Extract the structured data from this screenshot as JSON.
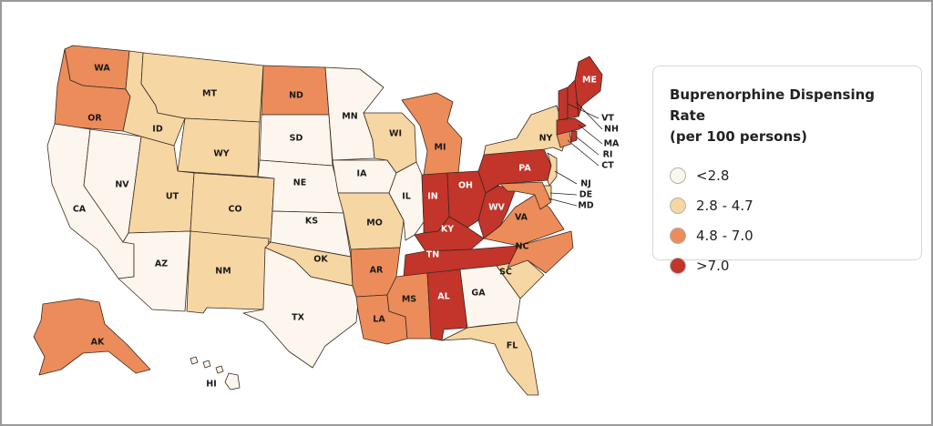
{
  "colors": {
    "bin_0": "#fdf6ee",
    "bin_1": "#f6d6a3",
    "bin_2": "#ec8c5a",
    "bin_3": "#c3342a"
  },
  "legend": {
    "title_line1": "Buprenorphine Dispensing Rate",
    "title_line2": "(per 100 persons)",
    "items": [
      {
        "label": "<2.8",
        "bin": 0
      },
      {
        "label": "2.8 - 4.7",
        "bin": 1
      },
      {
        "label": "4.8 - 7.0",
        "bin": 2
      },
      {
        "label": ">7.0",
        "bin": 3
      }
    ]
  },
  "states": [
    {
      "abbr": "WA",
      "bin": 2
    },
    {
      "abbr": "OR",
      "bin": 2
    },
    {
      "abbr": "CA",
      "bin": 0
    },
    {
      "abbr": "NV",
      "bin": 0
    },
    {
      "abbr": "ID",
      "bin": 1
    },
    {
      "abbr": "MT",
      "bin": 1
    },
    {
      "abbr": "WY",
      "bin": 1
    },
    {
      "abbr": "UT",
      "bin": 1
    },
    {
      "abbr": "CO",
      "bin": 1
    },
    {
      "abbr": "AZ",
      "bin": 0
    },
    {
      "abbr": "NM",
      "bin": 1
    },
    {
      "abbr": "ND",
      "bin": 2
    },
    {
      "abbr": "SD",
      "bin": 0
    },
    {
      "abbr": "NE",
      "bin": 0
    },
    {
      "abbr": "KS",
      "bin": 0
    },
    {
      "abbr": "OK",
      "bin": 1
    },
    {
      "abbr": "TX",
      "bin": 0
    },
    {
      "abbr": "MN",
      "bin": 0
    },
    {
      "abbr": "IA",
      "bin": 0
    },
    {
      "abbr": "MO",
      "bin": 1
    },
    {
      "abbr": "AR",
      "bin": 2
    },
    {
      "abbr": "LA",
      "bin": 2
    },
    {
      "abbr": "WI",
      "bin": 1
    },
    {
      "abbr": "IL",
      "bin": 0
    },
    {
      "abbr": "MI",
      "bin": 2
    },
    {
      "abbr": "IN",
      "bin": 3
    },
    {
      "abbr": "OH",
      "bin": 3
    },
    {
      "abbr": "KY",
      "bin": 3
    },
    {
      "abbr": "TN",
      "bin": 3
    },
    {
      "abbr": "MS",
      "bin": 2
    },
    {
      "abbr": "AL",
      "bin": 3
    },
    {
      "abbr": "GA",
      "bin": 0
    },
    {
      "abbr": "FL",
      "bin": 1
    },
    {
      "abbr": "SC",
      "bin": 1
    },
    {
      "abbr": "NC",
      "bin": 2
    },
    {
      "abbr": "VA",
      "bin": 2
    },
    {
      "abbr": "WV",
      "bin": 3
    },
    {
      "abbr": "PA",
      "bin": 3
    },
    {
      "abbr": "NY",
      "bin": 1
    },
    {
      "abbr": "NJ",
      "bin": 1
    },
    {
      "abbr": "DE",
      "bin": 1
    },
    {
      "abbr": "MD",
      "bin": 2
    },
    {
      "abbr": "CT",
      "bin": 2
    },
    {
      "abbr": "RI",
      "bin": 3
    },
    {
      "abbr": "MA",
      "bin": 3
    },
    {
      "abbr": "VT",
      "bin": 3
    },
    {
      "abbr": "NH",
      "bin": 3
    },
    {
      "abbr": "ME",
      "bin": 3
    },
    {
      "abbr": "AK",
      "bin": 2
    },
    {
      "abbr": "HI",
      "bin": 0
    }
  ]
}
